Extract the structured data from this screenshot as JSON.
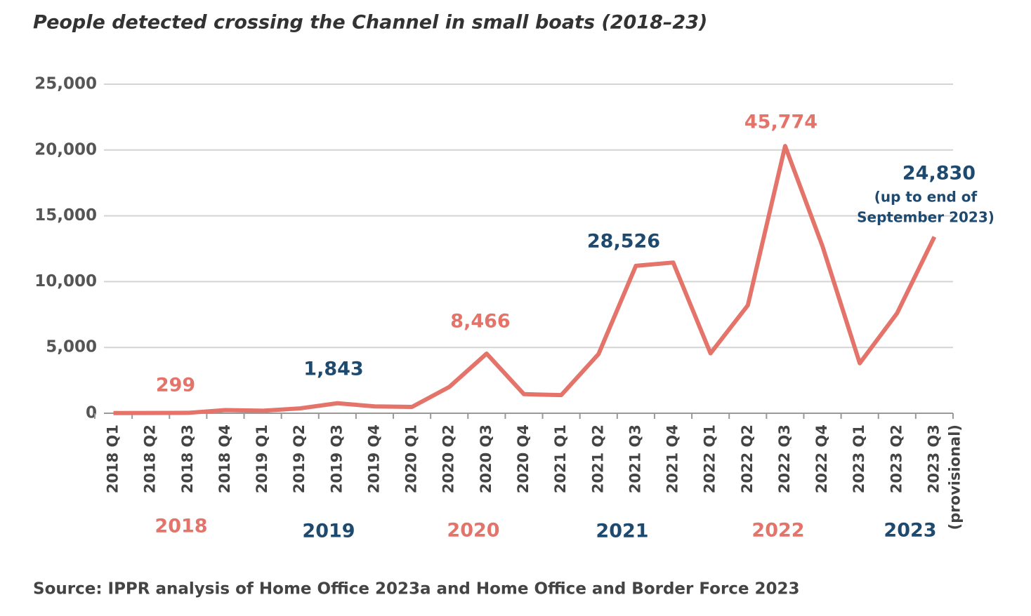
{
  "chart_data": {
    "type": "line",
    "title": "People detected crossing the Channel in small boats (2018–23)",
    "source": "Source: IPPR analysis of Home Office 2023a and Home Office and Border Force 2023",
    "categories": [
      "2018 Q1",
      "2018 Q2",
      "2018 Q3",
      "2018 Q4",
      "2019 Q1",
      "2019 Q2",
      "2019 Q3",
      "2019 Q4",
      "2020 Q1",
      "2020 Q2",
      "2020 Q3",
      "2020 Q4",
      "2021 Q1",
      "2021 Q2",
      "2021 Q3",
      "2021 Q4",
      "2022 Q1",
      "2022 Q2",
      "2022 Q3",
      "2022 Q4",
      "2023 Q1",
      "2023 Q2",
      "2023 Q3 (provisional)"
    ],
    "series": [
      {
        "name": "People detected",
        "color": "#e4736a",
        "values": [
          10,
          20,
          30,
          240,
          190,
          370,
          760,
          520,
          480,
          2000,
          4530,
          1450,
          1380,
          4500,
          11200,
          11450,
          4550,
          8200,
          20300,
          12700,
          3800,
          7600,
          13400
        ]
      }
    ],
    "ylim": [
      0,
      25000
    ],
    "yticks": [
      0,
      {
        "value": 5000,
        "label": "5,000"
      },
      {
        "value": 10000,
        "label": "10,000"
      },
      {
        "value": 15000,
        "label": "15,000"
      },
      {
        "value": 20000,
        "label": "20,000"
      },
      {
        "value": 25000,
        "label": "25,000"
      }
    ],
    "grid": true,
    "year_totals": {
      "years": [
        "2018",
        "2019",
        "2020",
        "2021",
        "2022",
        "2023"
      ],
      "values": [
        299,
        1843,
        8466,
        28526,
        45774,
        24830
      ],
      "value_labels": [
        "299",
        "1,843",
        "8,466",
        "28,526",
        "45,774",
        "24,830"
      ],
      "colors": [
        "#e4736a",
        "#1f4a70",
        "#e4736a",
        "#1f4a70",
        "#e4736a",
        "#1f4a70"
      ],
      "note": [
        "(up to end of",
        "September 2023)"
      ]
    }
  }
}
